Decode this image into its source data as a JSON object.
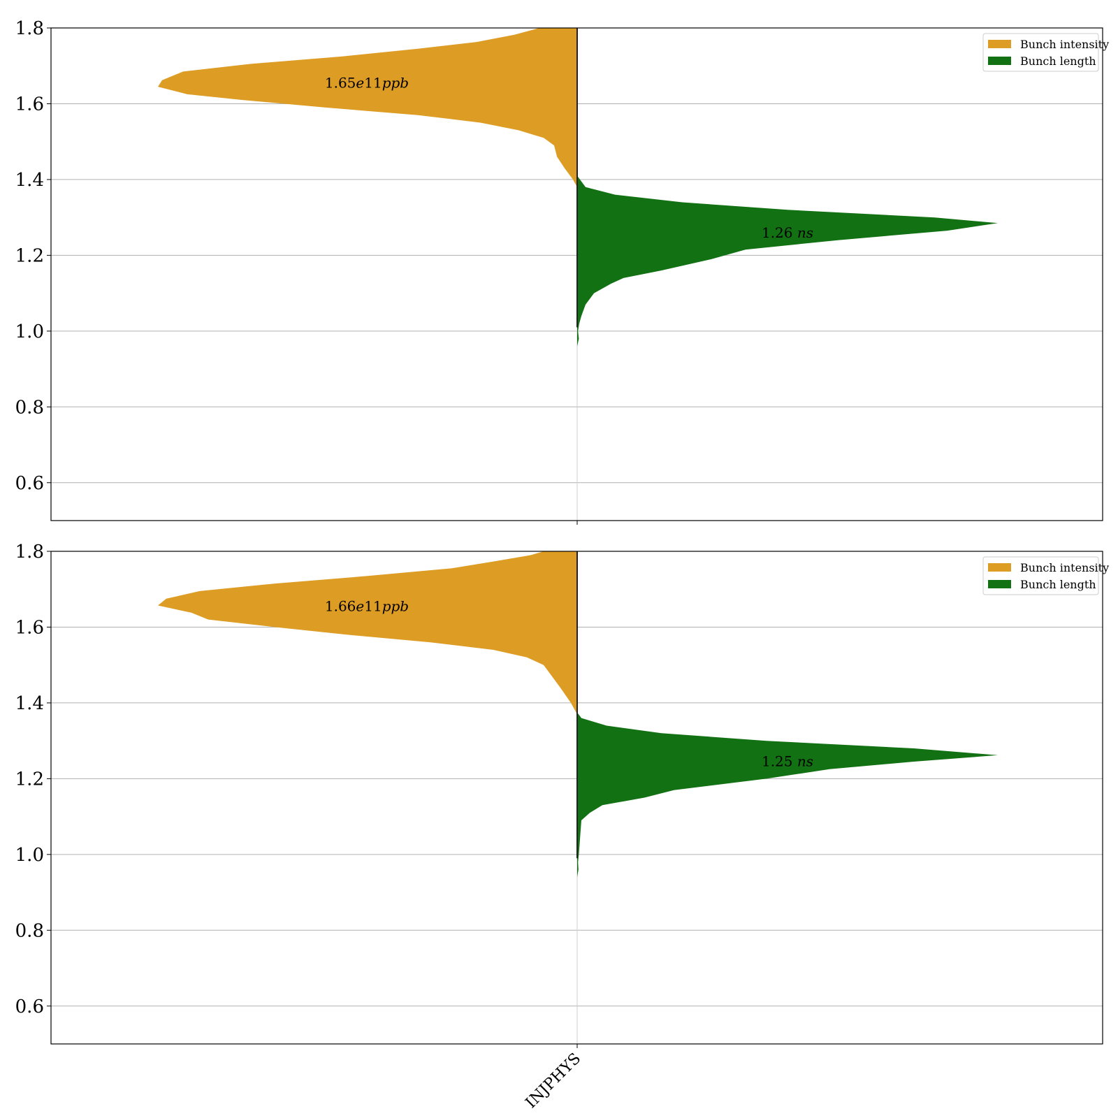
{
  "chart_data": [
    {
      "type": "violin",
      "ylim": [
        0.5,
        1.8
      ],
      "yticks": [
        0.6,
        0.8,
        1.0,
        1.2,
        1.4,
        1.6,
        1.8
      ],
      "grid": true,
      "legend": {
        "position": "top-right",
        "entries": [
          "Bunch intensity",
          "Bunch length"
        ]
      },
      "categories": [
        "INJPHYS"
      ],
      "series": [
        {
          "name": "Bunch intensity",
          "color": "#dd9c24",
          "side": "left",
          "label": {
            "prefix": "1.65",
            "exp": "e",
            "mid": "11",
            "unit": "ppb"
          },
          "label_y": 1.657,
          "profile": [
            [
              1.38,
              0
            ],
            [
              1.4,
              0.01
            ],
            [
              1.43,
              0.03
            ],
            [
              1.46,
              0.048
            ],
            [
              1.49,
              0.055
            ],
            [
              1.51,
              0.08
            ],
            [
              1.53,
              0.14
            ],
            [
              1.55,
              0.23
            ],
            [
              1.57,
              0.38
            ],
            [
              1.59,
              0.6
            ],
            [
              1.61,
              0.8
            ],
            [
              1.625,
              0.93
            ],
            [
              1.645,
              1.0
            ],
            [
              1.662,
              0.99
            ],
            [
              1.685,
              0.94
            ],
            [
              1.705,
              0.78
            ],
            [
              1.725,
              0.56
            ],
            [
              1.745,
              0.38
            ],
            [
              1.763,
              0.24
            ],
            [
              1.782,
              0.15
            ],
            [
              1.8,
              0.09
            ]
          ]
        },
        {
          "name": "Bunch length",
          "color": "#127112",
          "side": "right",
          "label": {
            "value": "1.26",
            "unit": "ns"
          },
          "label_y": 1.262,
          "profile": [
            [
              0.96,
              0
            ],
            [
              0.98,
              0.004
            ],
            [
              1.0,
              0.002
            ],
            [
              1.02,
              0.005
            ],
            [
              1.04,
              0.01
            ],
            [
              1.07,
              0.02
            ],
            [
              1.1,
              0.04
            ],
            [
              1.125,
              0.08
            ],
            [
              1.14,
              0.11
            ],
            [
              1.16,
              0.2
            ],
            [
              1.19,
              0.32
            ],
            [
              1.215,
              0.4
            ],
            [
              1.24,
              0.62
            ],
            [
              1.265,
              0.88
            ],
            [
              1.285,
              1.0
            ],
            [
              1.3,
              0.85
            ],
            [
              1.32,
              0.5
            ],
            [
              1.34,
              0.25
            ],
            [
              1.36,
              0.09
            ],
            [
              1.38,
              0.02
            ],
            [
              1.41,
              0
            ]
          ]
        }
      ]
    },
    {
      "type": "violin",
      "ylim": [
        0.5,
        1.8
      ],
      "yticks": [
        0.6,
        0.8,
        1.0,
        1.2,
        1.4,
        1.6,
        1.8
      ],
      "grid": true,
      "legend": {
        "position": "top-right",
        "entries": [
          "Bunch intensity",
          "Bunch length"
        ]
      },
      "categories": [
        "INJPHYS"
      ],
      "series": [
        {
          "name": "Bunch intensity",
          "color": "#dd9c24",
          "side": "left",
          "label": {
            "prefix": "1.66",
            "exp": "e",
            "mid": "11",
            "unit": "ppb"
          },
          "label_y": 1.657,
          "profile": [
            [
              1.37,
              0
            ],
            [
              1.4,
              0.015
            ],
            [
              1.44,
              0.04
            ],
            [
              1.47,
              0.06
            ],
            [
              1.5,
              0.08
            ],
            [
              1.52,
              0.12
            ],
            [
              1.54,
              0.2
            ],
            [
              1.56,
              0.35
            ],
            [
              1.58,
              0.55
            ],
            [
              1.6,
              0.72
            ],
            [
              1.62,
              0.88
            ],
            [
              1.638,
              0.92
            ],
            [
              1.657,
              1.0
            ],
            [
              1.675,
              0.98
            ],
            [
              1.695,
              0.9
            ],
            [
              1.715,
              0.72
            ],
            [
              1.735,
              0.5
            ],
            [
              1.755,
              0.3
            ],
            [
              1.773,
              0.2
            ],
            [
              1.79,
              0.11
            ],
            [
              1.8,
              0.08
            ]
          ]
        },
        {
          "name": "Bunch length",
          "color": "#127112",
          "side": "right",
          "label": {
            "value": "1.25",
            "unit": "ns"
          },
          "label_y": 1.248,
          "profile": [
            [
              0.94,
              0
            ],
            [
              0.96,
              0.003
            ],
            [
              0.98,
              0.002
            ],
            [
              1.0,
              0.004
            ],
            [
              1.03,
              0.006
            ],
            [
              1.06,
              0.008
            ],
            [
              1.09,
              0.01
            ],
            [
              1.11,
              0.03
            ],
            [
              1.13,
              0.06
            ],
            [
              1.15,
              0.16
            ],
            [
              1.17,
              0.23
            ],
            [
              1.2,
              0.45
            ],
            [
              1.225,
              0.6
            ],
            [
              1.245,
              0.8
            ],
            [
              1.262,
              1.0
            ],
            [
              1.28,
              0.8
            ],
            [
              1.3,
              0.45
            ],
            [
              1.32,
              0.2
            ],
            [
              1.34,
              0.07
            ],
            [
              1.36,
              0.01
            ],
            [
              1.375,
              0
            ]
          ]
        }
      ]
    }
  ]
}
